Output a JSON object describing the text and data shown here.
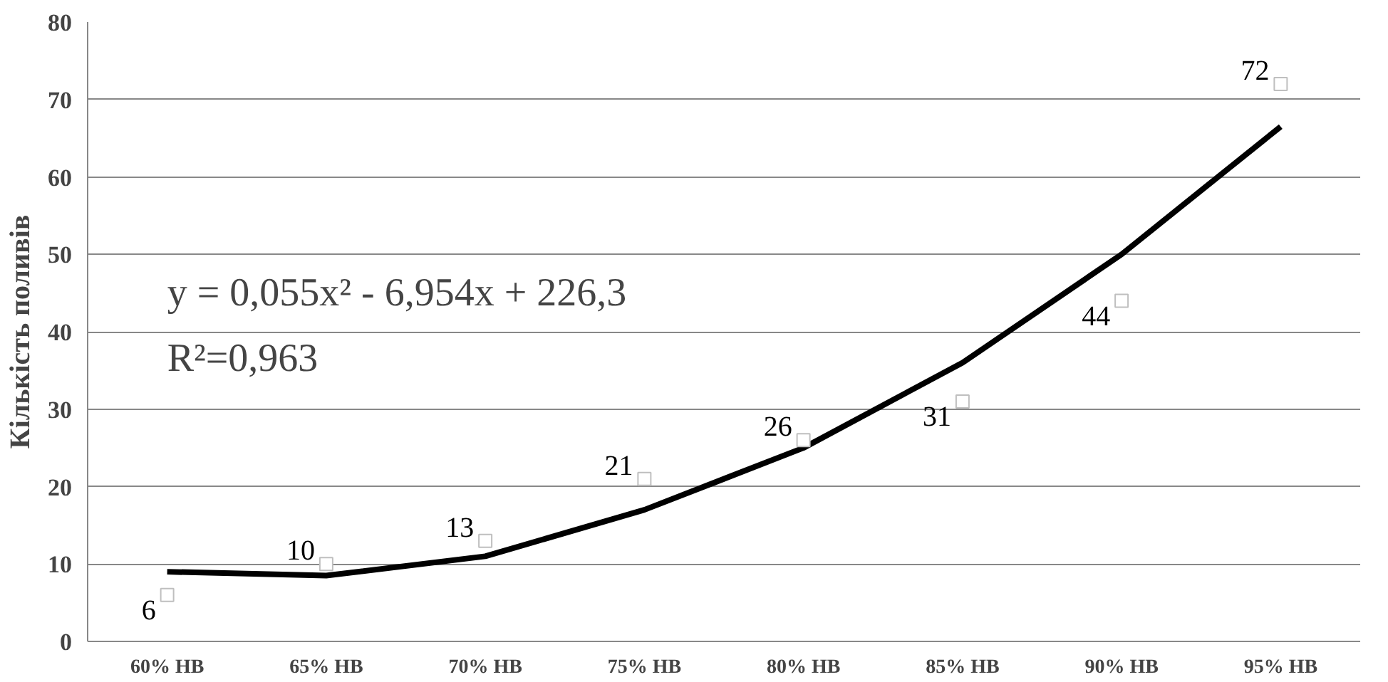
{
  "chart_data": {
    "type": "line",
    "ylabel": "Кількість поливів",
    "categories": [
      "60% НВ",
      "65% НВ",
      "70% НВ",
      "75% НВ",
      "80% НВ",
      "85% НВ",
      "90% НВ",
      "95% НВ"
    ],
    "ylim": [
      0,
      80
    ],
    "yticks": [
      0,
      10,
      20,
      30,
      40,
      50,
      60,
      70,
      80
    ],
    "grid": "y",
    "series": [
      {
        "type": "scatter",
        "marker": "square",
        "color": "#ffffff",
        "data_labels": true,
        "values": [
          6,
          10,
          13,
          21,
          26,
          31,
          44,
          72
        ]
      },
      {
        "color": "#000000",
        "values": [
          9,
          8.5,
          11,
          17,
          25,
          36,
          50,
          66.5
        ]
      }
    ],
    "annotations": [
      "y = 0,055x² - 6,954x + 226,3",
      "R²=0,963"
    ]
  }
}
